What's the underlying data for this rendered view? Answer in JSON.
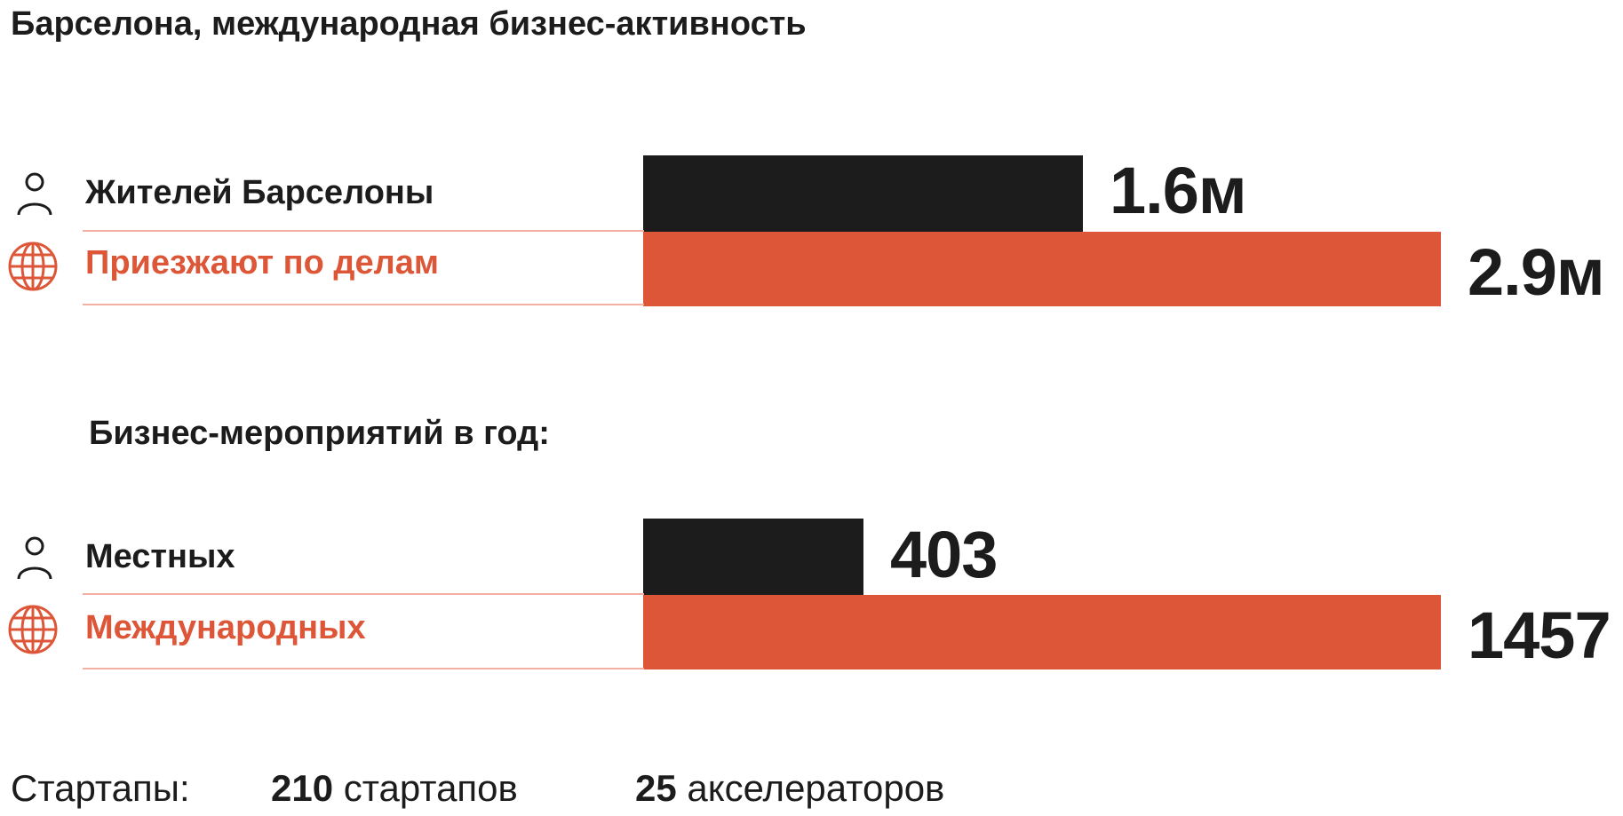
{
  "colors": {
    "accent": "#de5638",
    "dark": "#1c1c1c",
    "line": "#f1b0a2"
  },
  "chart_data": [
    {
      "type": "bar",
      "title": "Барселона, международная бизнес-активность",
      "categories": [
        "Жителей Барселоны",
        "Приезжают по делам"
      ],
      "values": [
        1.6,
        2.9
      ],
      "value_labels": [
        "1.6м",
        "2.9м"
      ],
      "icons": [
        "person-icon",
        "globe-icon"
      ],
      "xlim": [
        0,
        2.9
      ]
    },
    {
      "type": "bar",
      "group_label": "Бизнес-мероприятий в год:",
      "categories": [
        "Местных",
        "Международных"
      ],
      "values": [
        403,
        1457
      ],
      "value_labels": [
        "403",
        "1457"
      ],
      "icons": [
        "person-icon",
        "globe-icon"
      ],
      "xlim": [
        0,
        1457
      ]
    }
  ],
  "footer": {
    "label": "Стартапы:",
    "startups_count": "210",
    "startups_text": "стартапов",
    "accelerators_count": "25",
    "accelerators_text": "акселераторов"
  }
}
